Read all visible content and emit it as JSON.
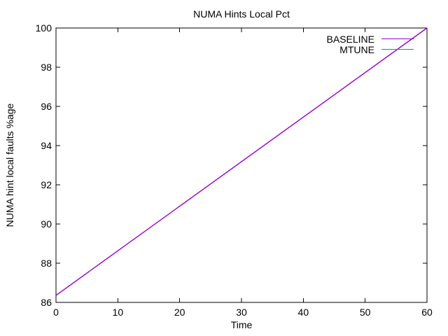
{
  "chart_data": {
    "type": "line",
    "title": "NUMA Hints Local Pct",
    "xlabel": "Time",
    "ylabel": "NUMA hint local faults %age",
    "xlim": [
      0,
      60
    ],
    "ylim": [
      86,
      100
    ],
    "xticks": [
      "0",
      "10",
      "20",
      "30",
      "40",
      "50",
      "60"
    ],
    "yticks": [
      "86",
      "88",
      "90",
      "92",
      "94",
      "96",
      "98",
      "100"
    ],
    "grid": false,
    "legend_position": "inside-top-right",
    "series": [
      {
        "name": "BASELINE",
        "color": "#9400d3",
        "x": [
          0,
          60
        ],
        "y": [
          86.36,
          100
        ]
      },
      {
        "name": "MTUNE",
        "color": "#009e73",
        "x": [],
        "y": []
      }
    ],
    "axis_color": "#000000",
    "background_color": "#ffffff"
  }
}
